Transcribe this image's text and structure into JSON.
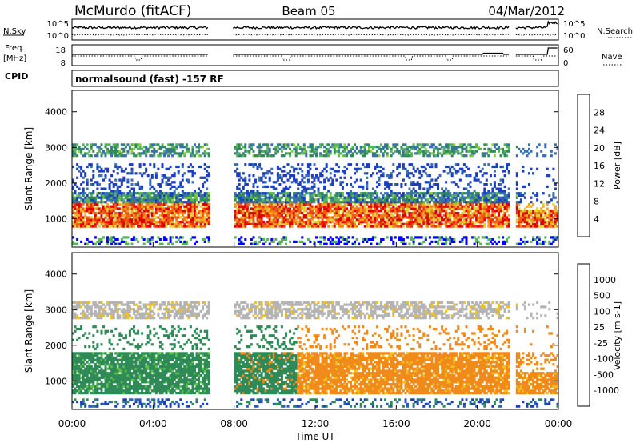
{
  "header": {
    "station": "McMurdo (fitACF)",
    "beam": "Beam 05",
    "date": "04/Mar/2012"
  },
  "strips": {
    "nsky_label": "N.Sky",
    "nsky_ticks": [
      "10^5",
      "10^0"
    ],
    "nsearch_label": "N.Search",
    "nsearch_ticks": [
      "10^5",
      "10^0"
    ],
    "freq_label_line1": "Freq.",
    "freq_label_line2": "[MHz]",
    "freq_ticks": [
      "18",
      "8"
    ],
    "nave_label": "Nave",
    "nave_ticks": [
      "60",
      "0"
    ],
    "cpid_label": "CPID",
    "cpid_text": "normalsound (fast) -157 RF"
  },
  "chart_data": [
    {
      "type": "heatmap",
      "title": "",
      "ylabel": "Slant Range [km]",
      "xlabel": "",
      "ylim": [
        200,
        4600
      ],
      "xlim_hours": [
        0,
        24
      ],
      "yticks": [
        "1000",
        "2000",
        "3000",
        "4000"
      ],
      "colorbar": {
        "label": "Power [dB]",
        "ticks": [
          "4",
          "8",
          "12",
          "16",
          "20",
          "24",
          "28"
        ],
        "range": [
          0,
          32
        ],
        "colors": [
          "#0000ff",
          "#1c3fc0",
          "#3a6fb2",
          "#2e8b57",
          "#56b45a",
          "#8fce3c",
          "#e0d23a",
          "#f5a623",
          "#f07d1a",
          "#ee5a14",
          "#e83010",
          "#e00000"
        ]
      },
      "data_gaps_hours": [
        [
          6.7,
          7.9
        ],
        [
          21.6,
          21.9
        ]
      ]
    },
    {
      "type": "heatmap",
      "title": "",
      "ylabel": "Slant Range [km]",
      "xlabel": "Time UT",
      "ylim": [
        200,
        4600
      ],
      "xlim_hours": [
        0,
        24
      ],
      "yticks": [
        "1000",
        "2000",
        "3000",
        "4000"
      ],
      "xticks": [
        "00:00",
        "04:00",
        "08:00",
        "12:00",
        "16:00",
        "20:00",
        "00:00"
      ],
      "colorbar": {
        "label": "Velocity [m s-1]",
        "ticks": [
          "1000",
          "500",
          "100",
          "25",
          "-25",
          "-100",
          "-500",
          "-1000"
        ],
        "colors": [
          "#1f3fb0",
          "#2a5fb8",
          "#2e8b57",
          "#5fbf4a",
          "#b4b4b4",
          "#f0c020",
          "#f08a1a",
          "#ef5a14",
          "#e00000"
        ]
      },
      "data_gaps_hours": [
        [
          6.7,
          7.9
        ],
        [
          21.6,
          21.9
        ]
      ]
    }
  ]
}
